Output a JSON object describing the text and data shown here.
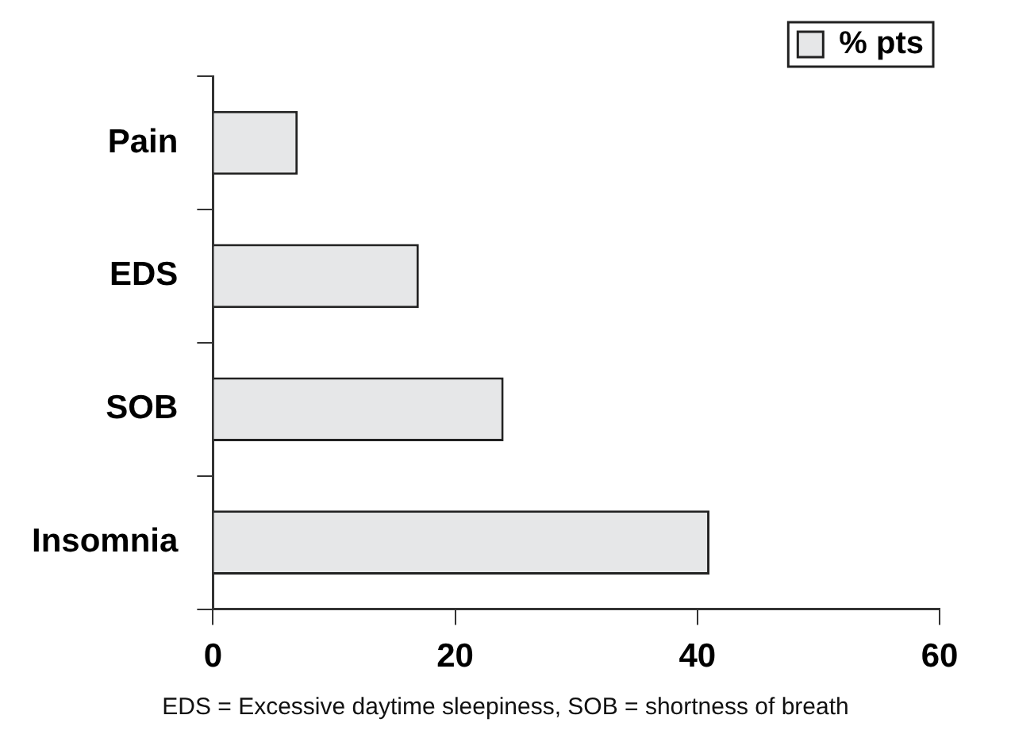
{
  "chart_data": {
    "type": "bar",
    "orientation": "horizontal",
    "categories": [
      "Pain",
      "EDS",
      "SOB",
      "Insomnia"
    ],
    "series": [
      {
        "name": "% pts",
        "color": "#e6e7e8",
        "values": [
          7,
          17,
          24,
          41
        ]
      }
    ],
    "xlim": [
      0,
      60
    ],
    "xticks": [
      0,
      20,
      40,
      60
    ],
    "grid": false,
    "legend": "top right",
    "annotations": [
      "EDS = Excessive daytime sleepiness, SOB = shortness of breath"
    ]
  }
}
